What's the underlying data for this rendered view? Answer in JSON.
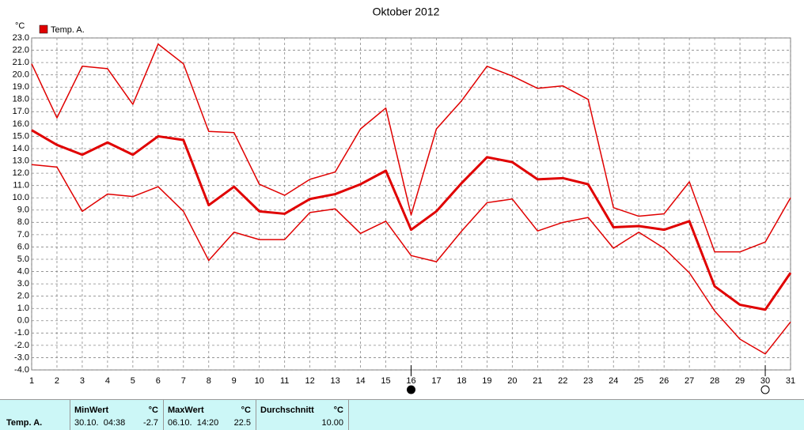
{
  "chart_data": {
    "type": "line",
    "title": "Oktober 2012",
    "y_unit": "°C",
    "legend": "Temp. A.",
    "color": "#e00000",
    "x": [
      1,
      2,
      3,
      4,
      5,
      6,
      7,
      8,
      9,
      10,
      11,
      12,
      13,
      14,
      15,
      16,
      17,
      18,
      19,
      20,
      21,
      22,
      23,
      24,
      25,
      26,
      27,
      28,
      29,
      30,
      31
    ],
    "series": [
      {
        "color": "#e00000",
        "width": 1.5,
        "values": [
          20.9,
          16.5,
          20.7,
          20.5,
          17.6,
          22.5,
          20.9,
          15.4,
          15.3,
          11.1,
          10.2,
          11.5,
          12.1,
          15.6,
          17.3,
          8.6,
          15.6,
          17.9,
          20.7,
          19.9,
          18.9,
          19.1,
          18.0,
          9.2,
          8.5,
          8.7,
          11.3,
          5.6,
          5.6,
          6.4,
          10.0
        ]
      },
      {
        "color": "#e00000",
        "width": 3,
        "values": [
          15.5,
          14.3,
          13.5,
          14.5,
          13.5,
          15.0,
          14.7,
          9.4,
          10.9,
          8.9,
          8.7,
          9.9,
          10.3,
          11.1,
          12.2,
          7.4,
          8.9,
          11.2,
          13.3,
          12.9,
          11.5,
          11.6,
          11.1,
          7.6,
          7.7,
          7.4,
          8.1,
          2.8,
          1.3,
          0.9,
          3.9
        ]
      },
      {
        "color": "#e00000",
        "width": 1.5,
        "values": [
          12.7,
          12.5,
          8.9,
          10.3,
          10.1,
          10.9,
          8.9,
          4.9,
          7.2,
          6.6,
          6.6,
          8.8,
          9.1,
          7.1,
          8.1,
          5.3,
          4.8,
          7.3,
          9.6,
          9.9,
          7.3,
          8.0,
          8.4,
          5.9,
          7.2,
          5.9,
          3.9,
          0.8,
          -1.5,
          -2.7,
          -0.1
        ]
      }
    ],
    "xlim": [
      1,
      31
    ],
    "xticks": [
      1,
      2,
      3,
      4,
      5,
      6,
      7,
      8,
      9,
      10,
      11,
      12,
      13,
      14,
      15,
      16,
      17,
      18,
      19,
      20,
      21,
      22,
      23,
      24,
      25,
      26,
      27,
      28,
      29,
      30,
      31
    ],
    "ylim": [
      -4,
      23
    ],
    "yticks": [
      {
        "value": -4,
        "label": "-4.0"
      },
      {
        "value": -3,
        "label": "-3.0"
      },
      {
        "value": -2,
        "label": "-2.0"
      },
      {
        "value": -1,
        "label": "-1.0"
      },
      {
        "value": 0,
        "label": "0.0"
      },
      {
        "value": 1,
        "label": "1.0"
      },
      {
        "value": 2,
        "label": "2.0"
      },
      {
        "value": 3,
        "label": "3.0"
      },
      {
        "value": 4,
        "label": "4.0"
      },
      {
        "value": 5,
        "label": "5.0"
      },
      {
        "value": 6,
        "label": "6.0"
      },
      {
        "value": 7,
        "label": "7.0"
      },
      {
        "value": 8,
        "label": "8.0"
      },
      {
        "value": 9,
        "label": "9.0"
      },
      {
        "value": 10,
        "label": "10.0"
      },
      {
        "value": 11,
        "label": "11.0"
      },
      {
        "value": 12,
        "label": "12.0"
      },
      {
        "value": 13,
        "label": "13.0"
      },
      {
        "value": 14,
        "label": "14.0"
      },
      {
        "value": 15,
        "label": "15.0"
      },
      {
        "value": 16,
        "label": "16.0"
      },
      {
        "value": 17,
        "label": "17.0"
      },
      {
        "value": 18,
        "label": "18.0"
      },
      {
        "value": 19,
        "label": "19.0"
      },
      {
        "value": 20,
        "label": "20.0"
      },
      {
        "value": 21,
        "label": "21.0"
      },
      {
        "value": 22,
        "label": "22.0"
      },
      {
        "value": 23,
        "label": "23.0"
      }
    ],
    "grid": true,
    "moon_markers": [
      {
        "x": 16,
        "filled": true
      },
      {
        "x": 30,
        "filled": false
      }
    ]
  },
  "summary": {
    "row_label": "Temp. A.",
    "min": {
      "header": "MinWert",
      "unit": "°C",
      "time": "30.10.  04:38",
      "value": "-2.7"
    },
    "max": {
      "header": "MaxWert",
      "unit": "°C",
      "time": "06.10.  14:20",
      "value": "22.5"
    },
    "avg": {
      "header": "Durchschnitt",
      "unit": "°C",
      "value": "10.00"
    }
  }
}
